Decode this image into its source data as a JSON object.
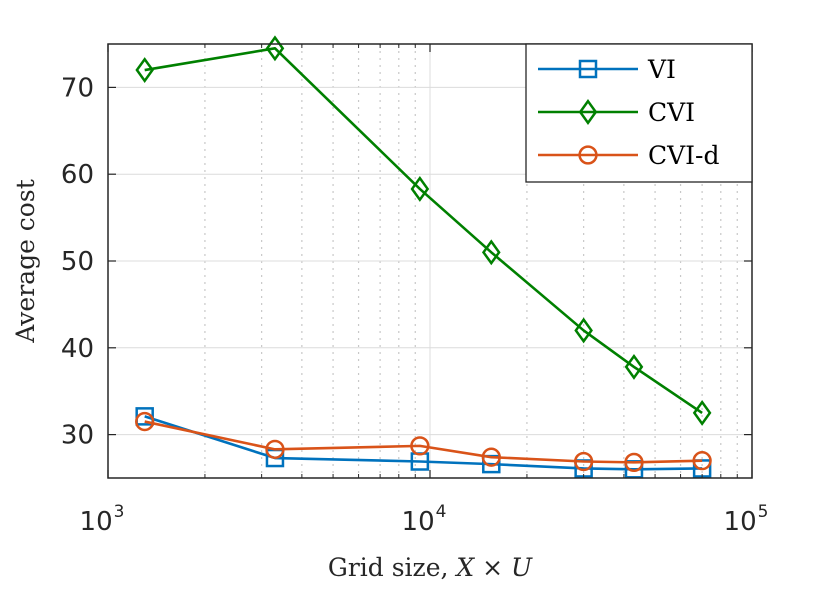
{
  "chart_data": {
    "type": "line",
    "xlabel_text": "Grid size, ",
    "xlabel_math": "X × U",
    "ylabel": "Average cost",
    "xscale": "log",
    "xlim": [
      1000,
      100000
    ],
    "ylim": [
      25,
      75
    ],
    "x_ticks": [
      {
        "value": 1000,
        "base": "10",
        "exp": "3"
      },
      {
        "value": 10000,
        "base": "10",
        "exp": "4"
      },
      {
        "value": 100000,
        "base": "10",
        "exp": "5"
      }
    ],
    "y_ticks": [
      30,
      40,
      50,
      60,
      70
    ],
    "grid": true,
    "legend_position": "top-right",
    "x": [
      1300,
      3300,
      9300,
      15500,
      30000,
      43000,
      70000
    ],
    "series": [
      {
        "name": "VI",
        "color": "#0072BD",
        "marker": "square",
        "values": [
          32.1,
          27.3,
          26.9,
          26.6,
          26.1,
          26.0,
          26.1
        ]
      },
      {
        "name": "CVI",
        "color": "#008000",
        "marker": "diamond",
        "values": [
          72.0,
          74.5,
          58.3,
          51.0,
          42.0,
          37.8,
          32.5
        ]
      },
      {
        "name": "CVI-d",
        "color": "#D95319",
        "marker": "circle",
        "values": [
          31.5,
          28.3,
          28.7,
          27.4,
          26.9,
          26.8,
          27.0
        ]
      }
    ]
  }
}
